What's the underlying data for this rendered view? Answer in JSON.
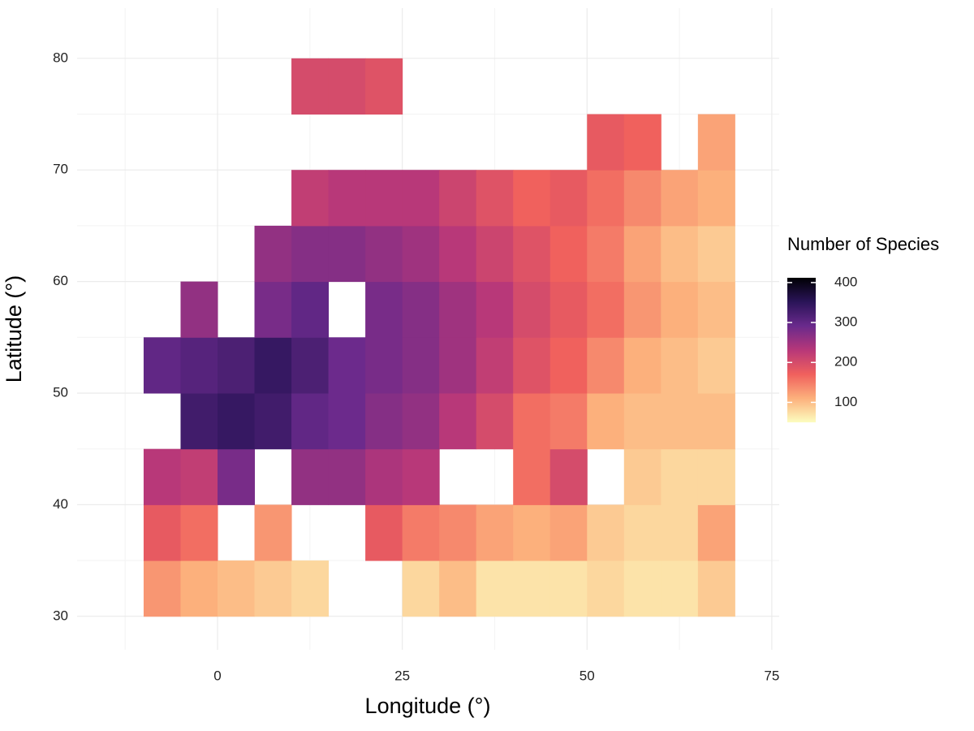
{
  "chart_data": {
    "type": "raster",
    "x_label": "Longitude (°)",
    "y_label": "Latitude (°)",
    "xlim": [
      -19,
      76
    ],
    "ylim": [
      27,
      84.5
    ],
    "xticks": [
      0,
      25,
      50,
      75
    ],
    "yticks": [
      30,
      40,
      50,
      60,
      70,
      80
    ],
    "grid": true,
    "x": [
      -7.5,
      -2.5,
      2.5,
      7.5,
      12.5,
      17.5,
      22.5,
      27.5,
      32.5,
      37.5,
      42.5,
      47.5,
      52.5,
      57.5,
      62.5,
      67.5
    ],
    "y": [
      32.5,
      37.5,
      42.5,
      47.5,
      52.5,
      57.5,
      62.5,
      67.5,
      72.5,
      77.5
    ],
    "values": [
      [
        130,
        110,
        100,
        90,
        80,
        null,
        null,
        80,
        100,
        70,
        70,
        70,
        80,
        70,
        70,
        90
      ],
      [
        180,
        160,
        null,
        130,
        null,
        null,
        180,
        150,
        140,
        120,
        110,
        120,
        90,
        80,
        80,
        120
      ],
      [
        230,
        220,
        280,
        null,
        260,
        260,
        240,
        230,
        null,
        null,
        160,
        200,
        null,
        90,
        80,
        80
      ],
      [
        null,
        330,
        340,
        330,
        300,
        290,
        270,
        260,
        230,
        200,
        160,
        150,
        110,
        100,
        100,
        100
      ],
      [
        300,
        310,
        320,
        340,
        320,
        290,
        280,
        270,
        250,
        220,
        190,
        170,
        140,
        110,
        100,
        90
      ],
      [
        null,
        260,
        null,
        280,
        300,
        null,
        280,
        270,
        250,
        230,
        200,
        180,
        160,
        130,
        110,
        100
      ],
      [
        null,
        null,
        null,
        260,
        270,
        270,
        260,
        250,
        230,
        210,
        190,
        170,
        150,
        120,
        100,
        90
      ],
      [
        null,
        null,
        null,
        null,
        220,
        230,
        230,
        230,
        210,
        190,
        170,
        180,
        160,
        140,
        120,
        110
      ],
      [
        null,
        null,
        null,
        null,
        null,
        null,
        null,
        null,
        null,
        null,
        null,
        null,
        180,
        170,
        null,
        120
      ],
      [
        null,
        null,
        null,
        null,
        200,
        200,
        190,
        null,
        null,
        null,
        null,
        null,
        null,
        null,
        null,
        null
      ]
    ],
    "colorbar": {
      "title": "Number of Species",
      "lim": [
        50,
        412
      ],
      "ticks": [
        100,
        200,
        300,
        400
      ],
      "colors": [
        "#fcfdbf",
        "#fcb07c",
        "#f0605d",
        "#b73779",
        "#6a2a8c",
        "#2a1458",
        "#000004"
      ]
    }
  }
}
